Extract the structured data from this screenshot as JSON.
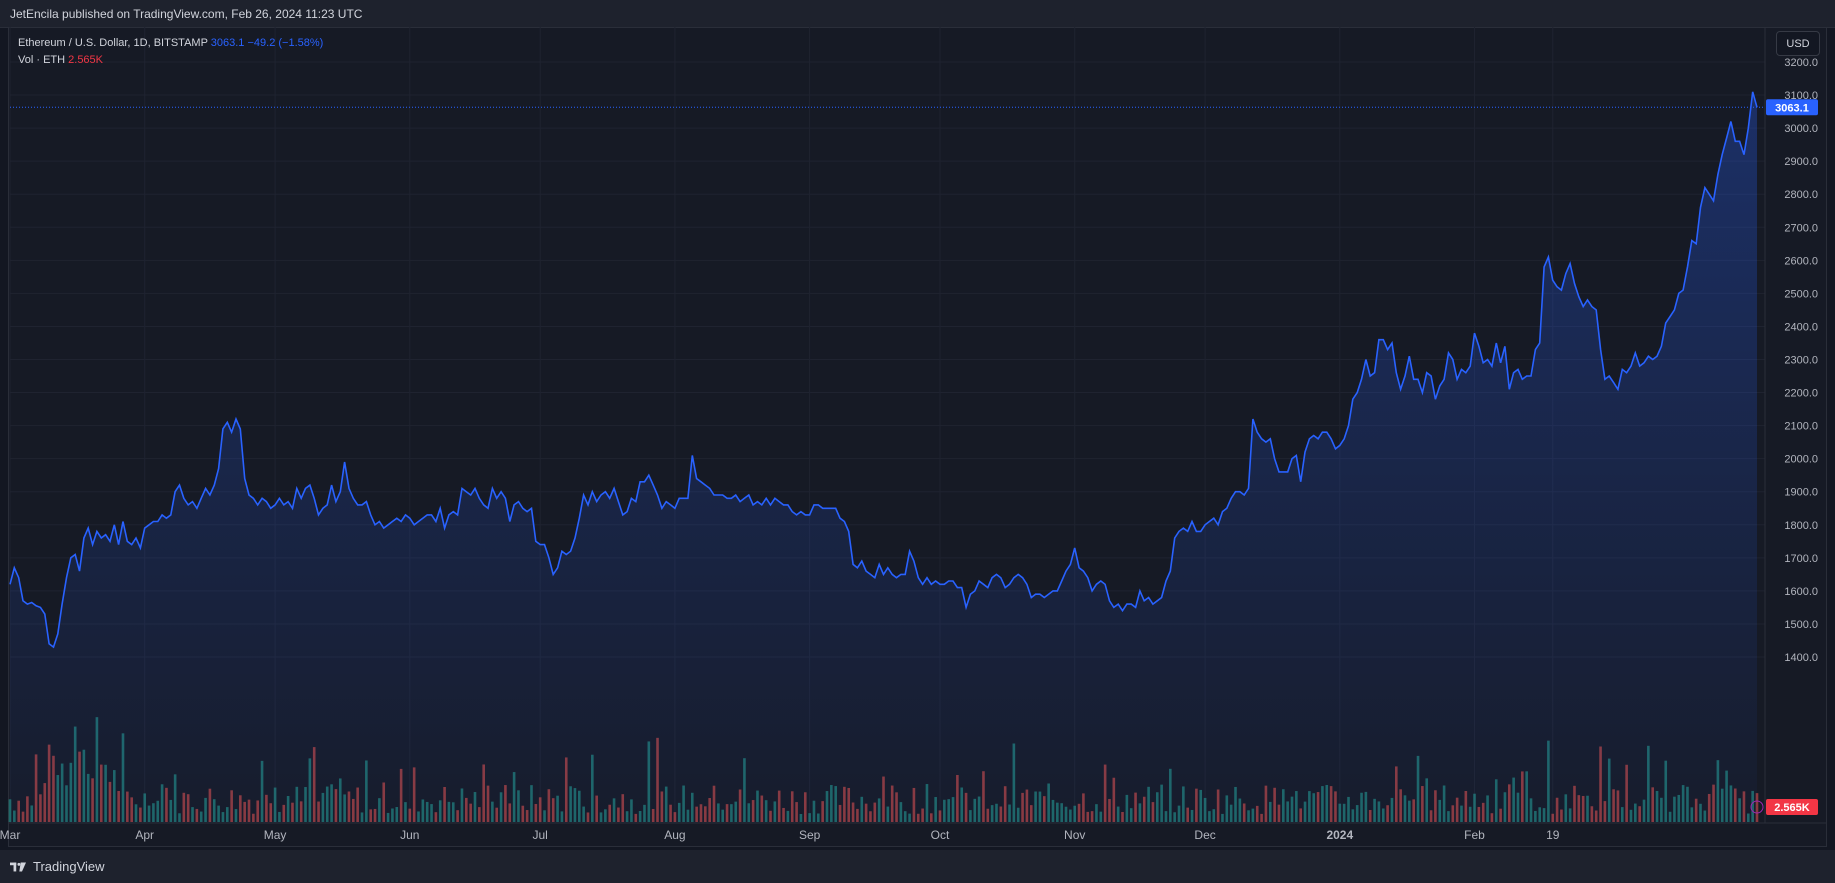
{
  "header": {
    "published": "JetEncila published on TradingView.com, Feb 26, 2024 11:23 UTC"
  },
  "legend": {
    "symbol": "Ethereum / U.S. Dollar, 1D, BITSTAMP",
    "price": "3063.1",
    "change": "−49.2 (−1.58%)",
    "vol_label": "Vol · ETH",
    "vol_value": "2.565K"
  },
  "controls": {
    "currency": "USD"
  },
  "footer": {
    "brand": "TradingView"
  },
  "colors": {
    "line": "#2962ff",
    "up": "#26a69a",
    "down": "#ef5350",
    "bg": "#131722",
    "grid": "#1f2330"
  },
  "chart_data": {
    "type": "line",
    "title": "Ethereum / U.S. Dollar, 1D, BITSTAMP",
    "ylim": [
      1350,
      3250
    ],
    "y_ticks": [
      1400,
      1500,
      1600,
      1700,
      1800,
      1900,
      2000,
      2100,
      2200,
      2300,
      2400,
      2500,
      2600,
      2700,
      2800,
      2900,
      3000,
      3100,
      3200
    ],
    "x_ticks": [
      "Mar",
      "Apr",
      "May",
      "Jun",
      "Jul",
      "Aug",
      "Sep",
      "Oct",
      "Nov",
      "Dec",
      "2024",
      "Feb",
      "19"
    ],
    "last_price_label": "3063.1",
    "volume_label": "2.565K",
    "grid": true,
    "series": [
      {
        "values": [
          1620,
          1670,
          1640,
          1570,
          1560,
          1565,
          1555,
          1550,
          1530,
          1440,
          1430,
          1470,
          1560,
          1640,
          1700,
          1710,
          1660,
          1760,
          1790,
          1740,
          1780,
          1760,
          1770,
          1750,
          1800,
          1740,
          1810,
          1750,
          1740,
          1760,
          1730,
          1790,
          1800,
          1810,
          1810,
          1830,
          1820,
          1830,
          1900,
          1920,
          1880,
          1860,
          1870,
          1850,
          1880,
          1910,
          1890,
          1920,
          1970,
          2090,
          2110,
          2080,
          2120,
          2090,
          1940,
          1890,
          1880,
          1860,
          1880,
          1870,
          1850,
          1860,
          1880,
          1860,
          1870,
          1850,
          1910,
          1880,
          1910,
          1920,
          1880,
          1830,
          1850,
          1860,
          1920,
          1870,
          1900,
          1990,
          1910,
          1880,
          1860,
          1860,
          1870,
          1830,
          1800,
          1810,
          1790,
          1800,
          1810,
          1820,
          1810,
          1830,
          1820,
          1800,
          1810,
          1820,
          1830,
          1830,
          1810,
          1850,
          1790,
          1830,
          1840,
          1830,
          1910,
          1900,
          1890,
          1910,
          1880,
          1860,
          1850,
          1910,
          1880,
          1900,
          1880,
          1810,
          1860,
          1870,
          1850,
          1840,
          1850,
          1750,
          1740,
          1740,
          1700,
          1650,
          1670,
          1720,
          1710,
          1720,
          1760,
          1820,
          1890,
          1860,
          1900,
          1870,
          1890,
          1900,
          1880,
          1910,
          1870,
          1830,
          1840,
          1880,
          1870,
          1930,
          1930,
          1950,
          1920,
          1890,
          1850,
          1870,
          1860,
          1850,
          1880,
          1880,
          1880,
          2010,
          1940,
          1930,
          1920,
          1910,
          1890,
          1890,
          1890,
          1880,
          1880,
          1890,
          1870,
          1880,
          1890,
          1860,
          1870,
          1860,
          1880,
          1860,
          1880,
          1870,
          1860,
          1860,
          1840,
          1830,
          1840,
          1830,
          1830,
          1860,
          1860,
          1850,
          1850,
          1850,
          1850,
          1820,
          1810,
          1780,
          1680,
          1670,
          1690,
          1660,
          1650,
          1640,
          1680,
          1650,
          1670,
          1650,
          1640,
          1650,
          1650,
          1720,
          1690,
          1640,
          1620,
          1640,
          1620,
          1630,
          1620,
          1620,
          1630,
          1630,
          1610,
          1610,
          1550,
          1590,
          1600,
          1630,
          1620,
          1610,
          1640,
          1650,
          1640,
          1610,
          1620,
          1640,
          1650,
          1640,
          1620,
          1580,
          1590,
          1590,
          1580,
          1590,
          1600,
          1600,
          1630,
          1660,
          1680,
          1730,
          1670,
          1660,
          1640,
          1600,
          1620,
          1630,
          1620,
          1570,
          1550,
          1560,
          1540,
          1560,
          1560,
          1550,
          1600,
          1570,
          1580,
          1560,
          1570,
          1580,
          1630,
          1660,
          1760,
          1780,
          1790,
          1780,
          1810,
          1780,
          1780,
          1800,
          1810,
          1820,
          1800,
          1840,
          1850,
          1880,
          1900,
          1900,
          1890,
          1910,
          2120,
          2080,
          2060,
          2050,
          2060,
          2000,
          1960,
          1960,
          1960,
          2000,
          2010,
          1930,
          2020,
          2060,
          2070,
          2060,
          2080,
          2080,
          2060,
          2030,
          2040,
          2060,
          2100,
          2180,
          2200,
          2240,
          2300,
          2250,
          2260,
          2360,
          2360,
          2330,
          2350,
          2260,
          2210,
          2250,
          2310,
          2240,
          2240,
          2200,
          2260,
          2250,
          2180,
          2220,
          2240,
          2320,
          2300,
          2240,
          2270,
          2260,
          2280,
          2380,
          2340,
          2290,
          2300,
          2280,
          2350,
          2290,
          2340,
          2210,
          2260,
          2270,
          2240,
          2250,
          2250,
          2330,
          2350,
          2580,
          2610,
          2540,
          2520,
          2510,
          2560,
          2590,
          2530,
          2490,
          2460,
          2480,
          2460,
          2450,
          2330,
          2240,
          2250,
          2230,
          2210,
          2270,
          2260,
          2280,
          2320,
          2280,
          2290,
          2310,
          2300,
          2310,
          2340,
          2410,
          2430,
          2450,
          2500,
          2510,
          2580,
          2660,
          2650,
          2760,
          2820,
          2800,
          2780,
          2860,
          2920,
          2970,
          3020,
          2960,
          2960,
          2920,
          3000,
          3110,
          3063.1
        ]
      }
    ]
  }
}
